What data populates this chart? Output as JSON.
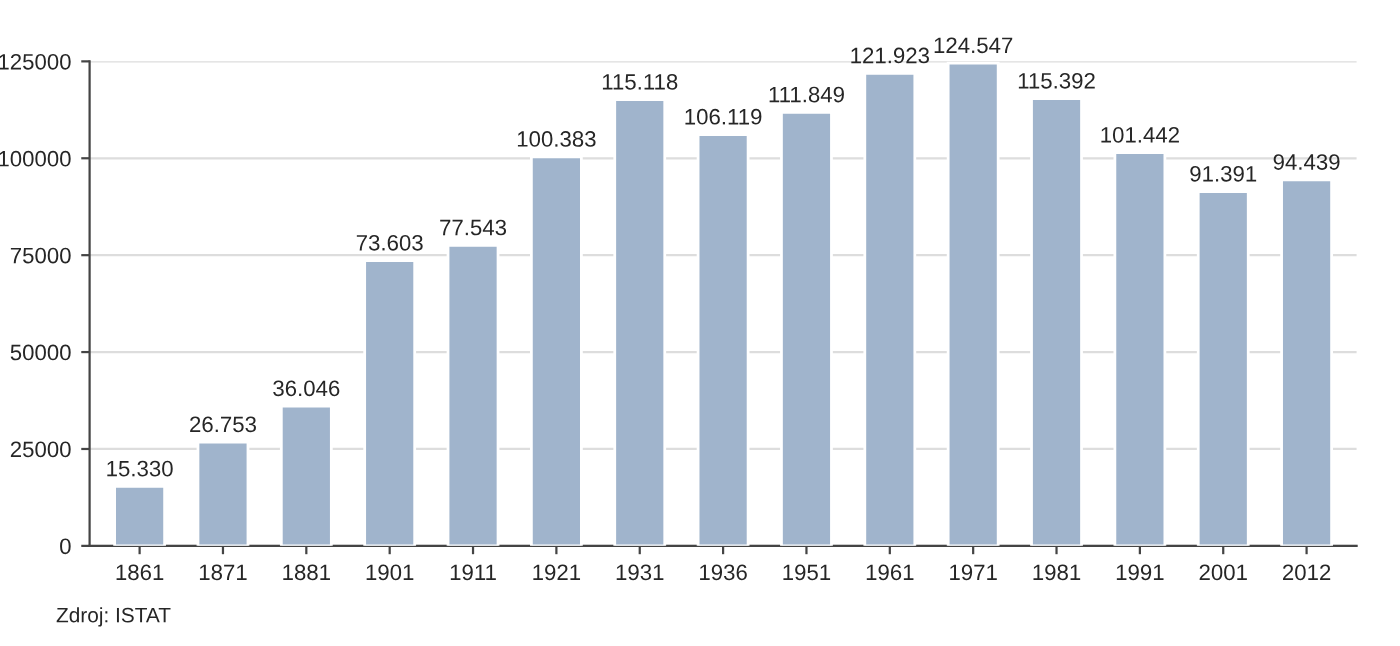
{
  "chart_data": {
    "type": "bar",
    "categories": [
      "1861",
      "1871",
      "1881",
      "1901",
      "1911",
      "1921",
      "1931",
      "1936",
      "1951",
      "1961",
      "1971",
      "1981",
      "1991",
      "2001",
      "2012"
    ],
    "values": [
      15330,
      26753,
      36046,
      73603,
      77543,
      100383,
      115118,
      106119,
      111849,
      121923,
      124547,
      115392,
      101442,
      91391,
      94439
    ],
    "value_labels": [
      "15.330",
      "26.753",
      "36.046",
      "73.603",
      "77.543",
      "100.383",
      "115.118",
      "106.119",
      "111.849",
      "121.923",
      "124.547",
      "115.392",
      "101.442",
      "91.391",
      "94.439"
    ],
    "color": "#a0b4cc",
    "ylim": [
      0,
      125000
    ],
    "yticks": [
      0,
      25000,
      50000,
      75000,
      100000,
      125000
    ],
    "grid": "y",
    "annotations": [
      "Zdroj: ISTAT"
    ]
  }
}
